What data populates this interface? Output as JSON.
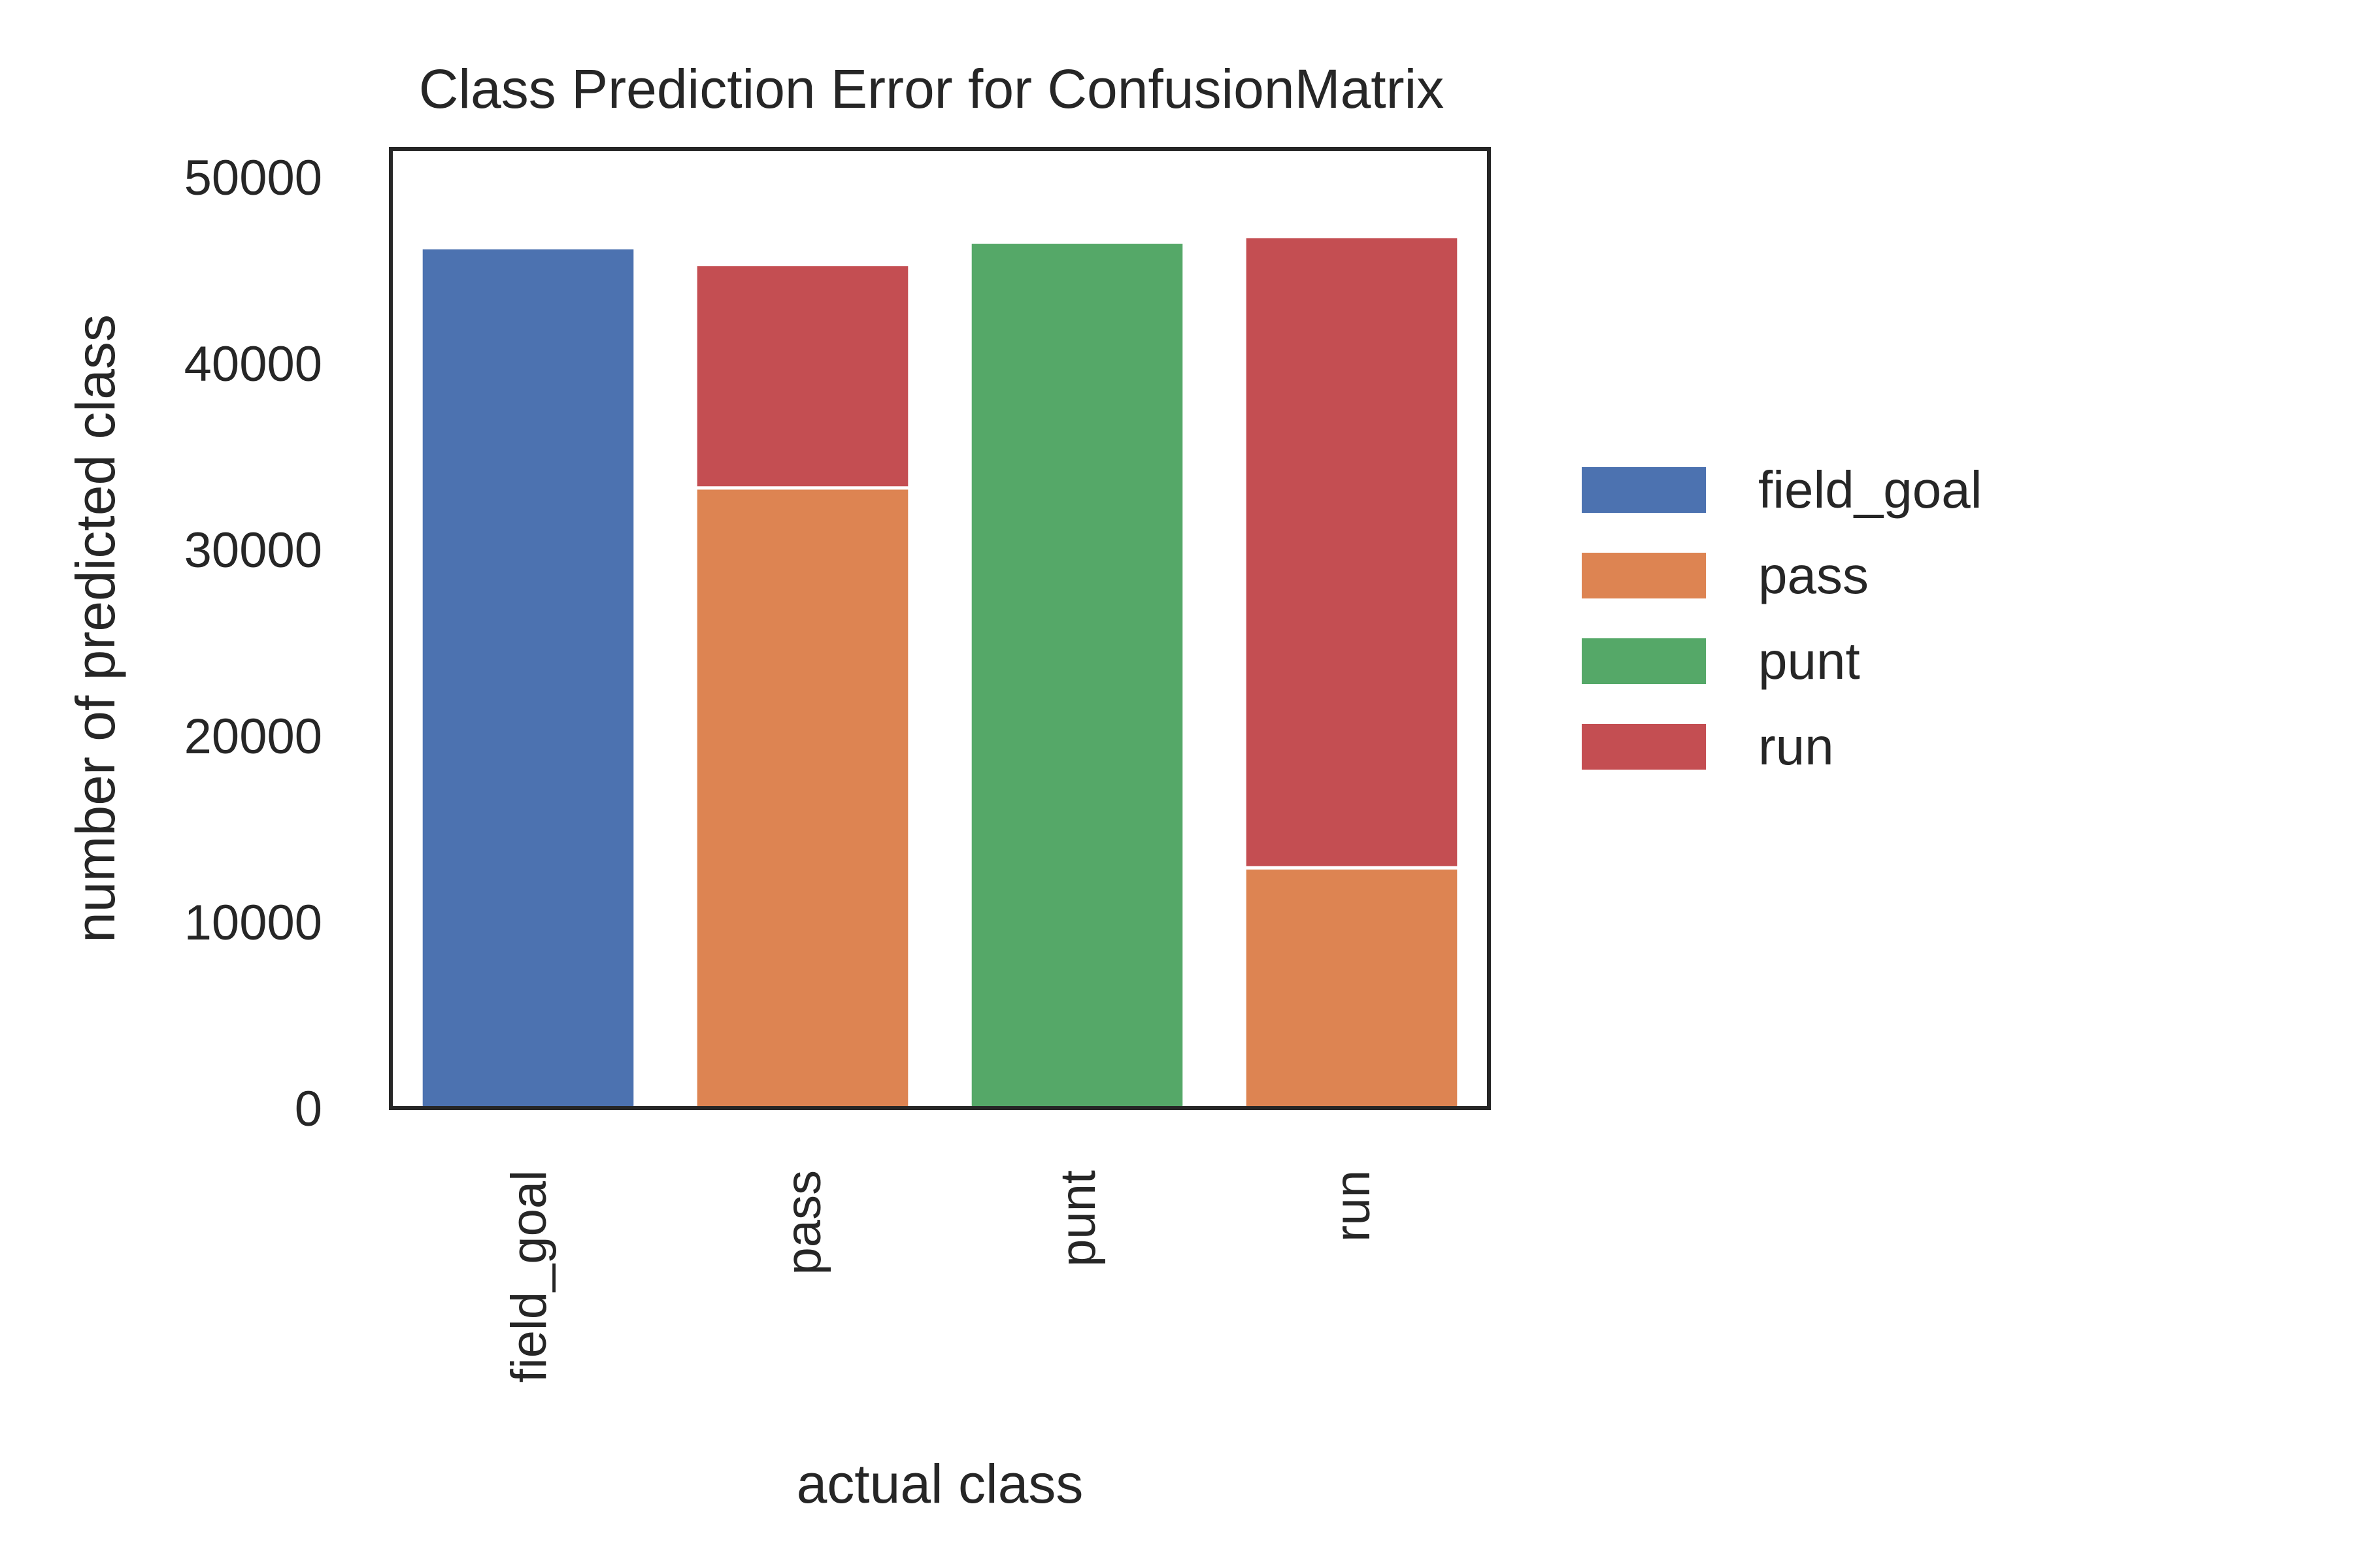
{
  "chart_data": {
    "type": "bar",
    "stacked": true,
    "title": "Class Prediction Error for ConfusionMatrix",
    "xlabel": "actual class",
    "ylabel": "number of predicted class",
    "categories": [
      "field_goal",
      "pass",
      "punt",
      "run"
    ],
    "ylim": [
      0,
      51500
    ],
    "yticks": [
      0,
      10000,
      20000,
      30000,
      40000,
      50000
    ],
    "grid": false,
    "legend_position": "right",
    "series": [
      {
        "name": "field_goal",
        "color": "#4c72b0",
        "values": [
          46200,
          0,
          0,
          0
        ]
      },
      {
        "name": "pass",
        "color": "#dd8452",
        "values": [
          0,
          33300,
          0,
          12900
        ]
      },
      {
        "name": "punt",
        "color": "#55a868",
        "values": [
          0,
          0,
          46500,
          0
        ]
      },
      {
        "name": "run",
        "color": "#c44e52",
        "values": [
          0,
          12000,
          0,
          33900
        ]
      }
    ]
  }
}
